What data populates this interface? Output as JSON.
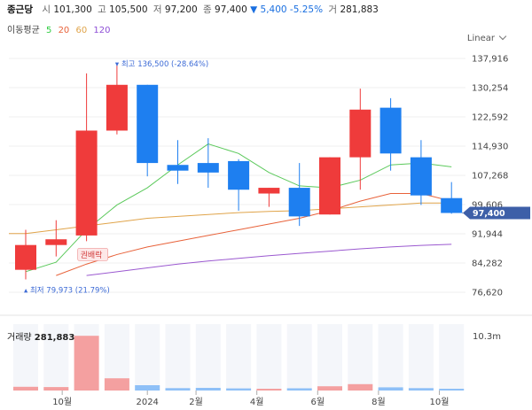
{
  "header": {
    "name": "종근당",
    "open_label": "시",
    "open": "101,300",
    "high_label": "고",
    "high": "105,500",
    "low_label": "저",
    "low": "97,200",
    "close_label": "종",
    "close": "97,400",
    "change": "▼ 5,400 -5.25%",
    "volume_label": "거",
    "volume": "281,883"
  },
  "ma_legend": {
    "label": "이동평균",
    "periods": [
      {
        "text": "5",
        "color": "#2ecc40"
      },
      {
        "text": "20",
        "color": "#e8623a"
      },
      {
        "text": "60",
        "color": "#e0a44a"
      },
      {
        "text": "120",
        "color": "#8e4fd6"
      }
    ]
  },
  "scale_label": "Linear",
  "volume_header": {
    "label": "거래량",
    "value": "281,883"
  },
  "colors": {
    "up": "#ef3b3b",
    "down": "#1e7ff0",
    "vol_up": "#f4a0a0",
    "vol_down": "#8ec0f7"
  },
  "chart_data": {
    "type": "candlestick",
    "price_axis": {
      "ticks": [
        76620,
        84282,
        91944,
        99606,
        107268,
        114930,
        122592,
        130254,
        137916
      ],
      "tick_labels": [
        "76,620",
        "84,282",
        "91,944",
        "99,606",
        "107,268",
        "114,930",
        "122,592",
        "130,254",
        "137,916"
      ],
      "ylim": [
        74000,
        142000
      ]
    },
    "current_price": {
      "value": 97400,
      "label": "97,400"
    },
    "max_annotation": {
      "value": 136500,
      "label": "최고 136,500 (-28.64%)"
    },
    "min_annotation": {
      "value": 79973,
      "label": "최저 79,973 (21.79%)"
    },
    "event_label": "권배락",
    "candles": [
      {
        "open": 82500,
        "high": 93000,
        "low": 79973,
        "close": 89000
      },
      {
        "open": 89000,
        "high": 95500,
        "low": 86000,
        "close": 90500
      },
      {
        "open": 91500,
        "high": 134000,
        "low": 90000,
        "close": 119000
      },
      {
        "open": 119000,
        "high": 136500,
        "low": 118000,
        "close": 131000
      },
      {
        "open": 131000,
        "high": 131000,
        "low": 107000,
        "close": 110500
      },
      {
        "open": 110000,
        "high": 116500,
        "low": 105000,
        "close": 108500
      },
      {
        "open": 110500,
        "high": 117000,
        "low": 104000,
        "close": 108000
      },
      {
        "open": 111000,
        "high": 111500,
        "low": 98000,
        "close": 103500
      },
      {
        "open": 102500,
        "high": 104000,
        "low": 99000,
        "close": 104000
      },
      {
        "open": 104000,
        "high": 110500,
        "low": 94000,
        "close": 96500
      },
      {
        "open": 97000,
        "high": 112000,
        "low": 97000,
        "close": 112000
      },
      {
        "open": 112000,
        "high": 130000,
        "low": 103500,
        "close": 124500
      },
      {
        "open": 125000,
        "high": 127500,
        "low": 108500,
        "close": 113000
      },
      {
        "open": 112000,
        "high": 116500,
        "low": 99500,
        "close": 102000
      },
      {
        "open": 101300,
        "high": 105500,
        "low": 97200,
        "close": 97400
      }
    ],
    "ma": [
      {
        "period": 5,
        "color": "#5bc95b",
        "values": [
          82000,
          84500,
          93000,
          99500,
          104000,
          110000,
          115500,
          113000,
          108000,
          104500,
          104000,
          106000,
          110000,
          110500,
          109500
        ]
      },
      {
        "period": 20,
        "color": "#e8623a",
        "values": [
          null,
          81000,
          84000,
          86500,
          88500,
          90000,
          91500,
          93000,
          94500,
          96000,
          98000,
          100500,
          102500,
          102500,
          100500
        ]
      },
      {
        "period": 60,
        "color": "#e0a44a",
        "values": [
          92000,
          93000,
          94000,
          95000,
          96000,
          96500,
          97000,
          97500,
          97800,
          98000,
          98500,
          99000,
          99500,
          100000,
          100000
        ]
      },
      {
        "period": 120,
        "color": "#9b59d0",
        "values": [
          null,
          null,
          81000,
          82000,
          83000,
          84000,
          84800,
          85500,
          86200,
          86800,
          87400,
          88000,
          88500,
          88900,
          89200
        ]
      }
    ],
    "volume": {
      "axis_label": "10.3m",
      "max": 12500000,
      "values": [
        700000,
        650000,
        10300000,
        2300000,
        1000000,
        450000,
        500000,
        400000,
        320000,
        420000,
        800000,
        1200000,
        600000,
        450000,
        281883
      ]
    },
    "x_labels": [
      {
        "index": 1.2,
        "label": "10월"
      },
      {
        "index": 4.0,
        "label": "2024"
      },
      {
        "index": 5.6,
        "label": "2월"
      },
      {
        "index": 7.6,
        "label": "4월"
      },
      {
        "index": 9.6,
        "label": "6월"
      },
      {
        "index": 11.6,
        "label": "8월"
      },
      {
        "index": 13.6,
        "label": "10월"
      }
    ]
  }
}
